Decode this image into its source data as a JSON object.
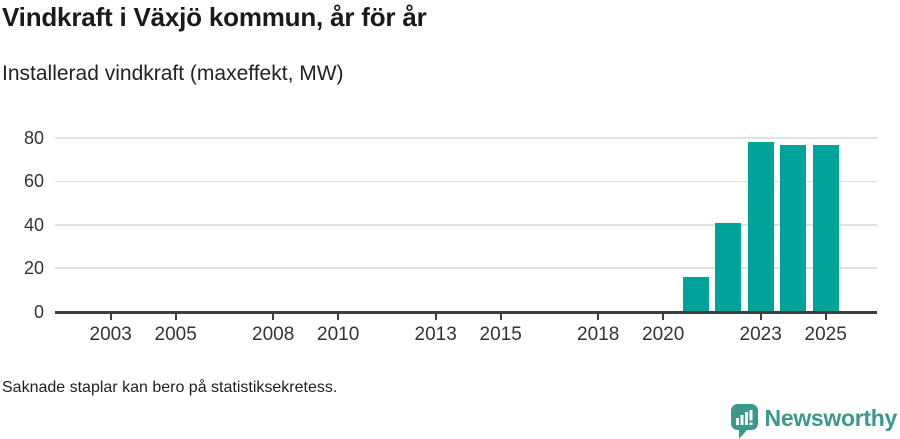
{
  "header": {
    "title": "Vindkraft i Växjö kommun, år för år",
    "subtitle": "Installerad vindkraft (maxeffekt, MW)"
  },
  "chart_data": {
    "type": "bar",
    "title": "Vindkraft i Växjö kommun, år för år",
    "subtitle": "Installerad vindkraft (maxeffekt, MW)",
    "unit": "MW",
    "x": [
      2021,
      2022,
      2023,
      2024,
      2025
    ],
    "values": [
      16,
      41,
      78,
      77,
      77
    ],
    "x_domain": [
      2002,
      2026
    ],
    "x_ticks": [
      2003,
      2005,
      2008,
      2010,
      2013,
      2015,
      2018,
      2020,
      2023,
      2025
    ],
    "ylim": [
      0,
      80
    ],
    "y_ticks": [
      0,
      20,
      40,
      60,
      80
    ],
    "grid": "horizontal-only",
    "legend": "none",
    "bar_color": "#00a39a"
  },
  "footer": {
    "note": "Saknade staplar kan bero på statistiksekretess.",
    "brand": "Newsworthy"
  },
  "colors": {
    "bar": "#00a39a",
    "brand_teal": "#3b998c",
    "axis": "#3e3e3e",
    "grid": "#e1e1e1"
  }
}
